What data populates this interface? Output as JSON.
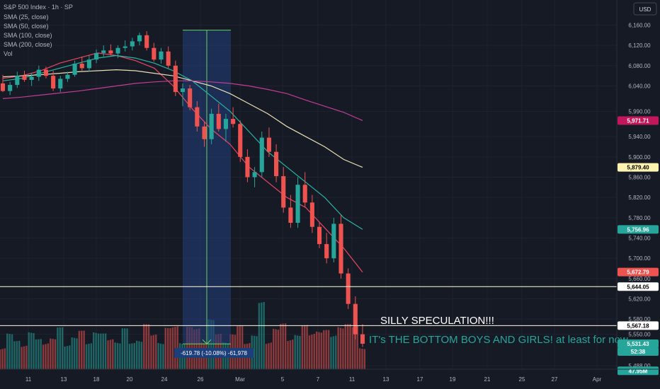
{
  "header": {
    "title": "S&P 500 Index · 1h · SP",
    "indicators": [
      "SMA (25, close)",
      "SMA (50, close)",
      "SMA (100, close)",
      "SMA (200, close)",
      "Vol"
    ],
    "currency_button": "USD"
  },
  "colors": {
    "background": "#161a25",
    "up": "#26a69a",
    "down": "#ef5350",
    "sma25": "#e84660",
    "sma50": "#26b5a5",
    "sma100": "#e8dfb4",
    "sma200": "#c13d93",
    "hline": "#fffde0",
    "measure_box": "#24407d",
    "measure_line": "#66d163"
  },
  "chart_data": {
    "type": "line",
    "price_axis": {
      "ticks": [
        "6,160.00",
        "6,120.00",
        "6,080.00",
        "6,040.00",
        "5,990.00",
        "5,940.00",
        "5,900.00",
        "5,860.00",
        "5,820.00",
        "5,780.00",
        "5,740.00",
        "5,700.00",
        "5,660.00",
        "5,620.00",
        "5,580.00",
        "5,550.00",
        "5,488.00"
      ],
      "range": [
        5470,
        6190
      ]
    },
    "date_axis": {
      "ticks": [
        "11",
        "13",
        "18",
        "20",
        "24",
        "26",
        "Mar",
        "5",
        "7",
        "11",
        "13",
        "17",
        "19",
        "21",
        "25",
        "27",
        "Apr"
      ]
    },
    "price_tags": [
      {
        "label": "5,971.71",
        "value": 5971.71,
        "bg": "#c2185b",
        "fg": "#ffffff"
      },
      {
        "label": "5,879.40",
        "value": 5879.4,
        "bg": "#fff3b0",
        "fg": "#000000"
      },
      {
        "label": "5,756.96",
        "value": 5756.96,
        "bg": "#26a69a",
        "fg": "#ffffff"
      },
      {
        "label": "5,672.79",
        "value": 5672.79,
        "bg": "#ef5350",
        "fg": "#ffffff"
      },
      {
        "label": "5,644.05",
        "value": 5644.05,
        "bg": "#ffffff",
        "fg": "#000000"
      },
      {
        "label": "5,567.18",
        "value": 5567.18,
        "bg": "#ffffff",
        "fg": "#000000"
      },
      {
        "label": "5,531.43",
        "value": 5531.43,
        "bg": "#26a69a",
        "fg": "#ffffff"
      },
      {
        "label": "52:38",
        "value": 5516,
        "bg": "#26a69a",
        "fg": "#ffffff"
      },
      {
        "label": "47.95M",
        "value": 5478,
        "bg": "#26a69a",
        "fg": "#ffffff"
      }
    ],
    "horizontal_lines": [
      5644.05,
      5567.18
    ],
    "annotations": {
      "title": "SILLY SPECULATION!!!",
      "subtitle": "IT's THE BOTTOM BOYS AND GIRLS! at least for now."
    },
    "measurement": {
      "label": "-619.78 (-10.08%) -61,978",
      "high": 6150,
      "low": 5531
    },
    "series": [
      {
        "name": "SMA (25, close)",
        "values": [
          6055,
          6060,
          6070,
          6085,
          6095,
          6105,
          6100,
          6090,
          6075,
          6040,
          5995,
          5955,
          5925,
          5880,
          5850,
          5820,
          5800,
          5760,
          5720,
          5672.79
        ]
      },
      {
        "name": "SMA (50, close)",
        "values": [
          6050,
          6055,
          6065,
          6075,
          6085,
          6095,
          6100,
          6095,
          6085,
          6070,
          6050,
          6020,
          5990,
          5950,
          5910,
          5880,
          5850,
          5820,
          5780,
          5756.96
        ]
      },
      {
        "name": "SMA (100, close)",
        "values": [
          6058,
          6060,
          6062,
          6065,
          6068,
          6070,
          6072,
          6070,
          6065,
          6060,
          6050,
          6040,
          6025,
          6005,
          5985,
          5960,
          5940,
          5920,
          5895,
          5879.4
        ]
      },
      {
        "name": "SMA (200, close)",
        "values": [
          6015,
          6018,
          6022,
          6026,
          6030,
          6035,
          6040,
          6045,
          6048,
          6050,
          6050,
          6048,
          6045,
          6040,
          6033,
          6025,
          6012,
          6000,
          5988,
          5971.71
        ]
      }
    ],
    "candles": [
      [
        6045,
        6062,
        6028,
        6030
      ],
      [
        6030,
        6048,
        6022,
        6042
      ],
      [
        6042,
        6068,
        6036,
        6060
      ],
      [
        6060,
        6070,
        6048,
        6052
      ],
      [
        6052,
        6066,
        6040,
        6058
      ],
      [
        6058,
        6080,
        6050,
        6072
      ],
      [
        6072,
        6078,
        6055,
        6060
      ],
      [
        6060,
        6070,
        6030,
        6035
      ],
      [
        6035,
        6060,
        6028,
        6054
      ],
      [
        6054,
        6068,
        6048,
        6062
      ],
      [
        6062,
        6090,
        6058,
        6084
      ],
      [
        6084,
        6098,
        6070,
        6075
      ],
      [
        6075,
        6100,
        6068,
        6092
      ],
      [
        6092,
        6112,
        6085,
        6105
      ],
      [
        6105,
        6120,
        6098,
        6110
      ],
      [
        6110,
        6122,
        6100,
        6104
      ],
      [
        6104,
        6120,
        6095,
        6115
      ],
      [
        6115,
        6130,
        6108,
        6118
      ],
      [
        6118,
        6135,
        6110,
        6128
      ],
      [
        6128,
        6145,
        6120,
        6140
      ],
      [
        6140,
        6148,
        6110,
        6115
      ],
      [
        6115,
        6125,
        6088,
        6092
      ],
      [
        6092,
        6115,
        6084,
        6108
      ],
      [
        6108,
        6118,
        6075,
        6080
      ],
      [
        6080,
        6090,
        6020,
        6028
      ],
      [
        6028,
        6045,
        6000,
        6035
      ],
      [
        6035,
        6042,
        5992,
        5998
      ],
      [
        5998,
        6010,
        5950,
        5960
      ],
      [
        5960,
        5970,
        5920,
        5935
      ],
      [
        5935,
        5995,
        5925,
        5985
      ],
      [
        5985,
        6005,
        5950,
        5955
      ],
      [
        5955,
        5985,
        5930,
        5975
      ],
      [
        5975,
        5998,
        5958,
        5965
      ],
      [
        5965,
        5972,
        5890,
        5900
      ],
      [
        5900,
        5915,
        5850,
        5860
      ],
      [
        5860,
        5880,
        5840,
        5870
      ],
      [
        5870,
        5950,
        5860,
        5938
      ],
      [
        5938,
        5958,
        5900,
        5910
      ],
      [
        5910,
        5925,
        5850,
        5862
      ],
      [
        5862,
        5880,
        5790,
        5800
      ],
      [
        5800,
        5825,
        5760,
        5770
      ],
      [
        5770,
        5860,
        5760,
        5845
      ],
      [
        5845,
        5870,
        5800,
        5810
      ],
      [
        5810,
        5825,
        5750,
        5762
      ],
      [
        5762,
        5770,
        5720,
        5728
      ],
      [
        5728,
        5750,
        5690,
        5700
      ],
      [
        5700,
        5780,
        5692,
        5768
      ],
      [
        5768,
        5785,
        5660,
        5670
      ],
      [
        5670,
        5680,
        5600,
        5610
      ],
      [
        5610,
        5625,
        5540,
        5550
      ],
      [
        5550,
        5570,
        5525,
        5531.43
      ]
    ],
    "volumes": [
      0.45,
      0.52,
      0.4,
      0.48,
      0.55,
      0.42,
      0.5,
      0.47,
      0.58,
      0.44,
      0.5,
      0.53,
      0.46,
      0.6,
      0.49,
      0.51,
      0.45,
      0.56,
      0.43,
      0.5,
      0.62,
      0.55,
      0.48,
      0.57,
      0.66,
      0.5,
      0.59,
      0.61,
      0.54,
      0.7,
      0.52,
      0.58,
      0.5,
      0.63,
      0.57,
      0.49,
      0.95,
      0.55,
      0.6,
      0.64,
      0.58,
      0.52,
      0.61,
      0.66,
      0.59,
      0.54,
      0.6,
      0.68,
      0.62,
      0.75,
      0.35
    ]
  }
}
